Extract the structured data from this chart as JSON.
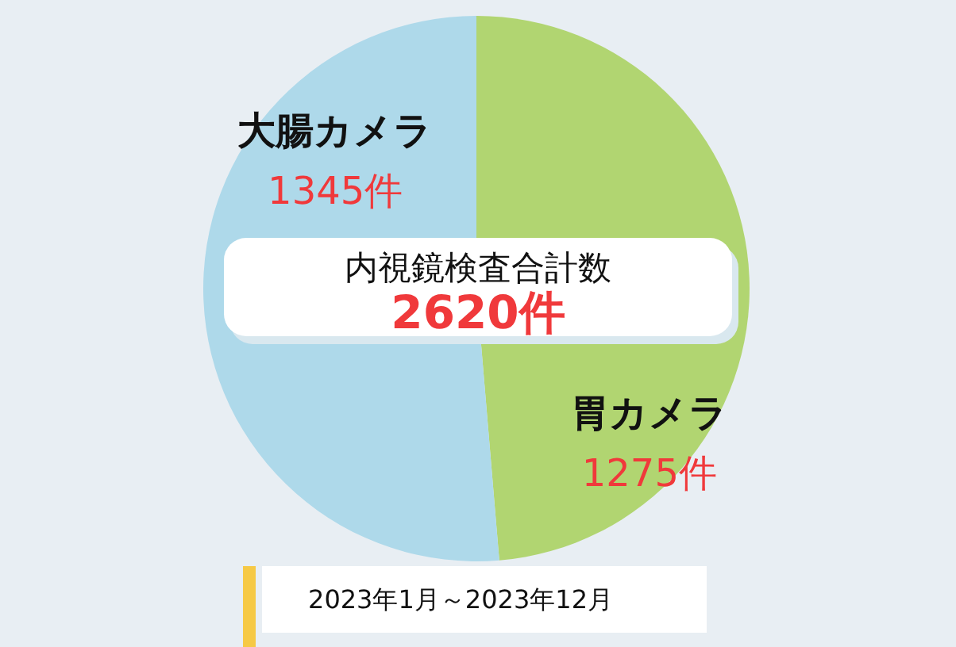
{
  "chart_data": {
    "type": "pie",
    "title": "内視鏡検査合計数",
    "categories": [
      "胃カメラ",
      "大腸カメラ"
    ],
    "values": [
      1275,
      1345
    ],
    "colors": [
      "#b1d571",
      "#aed9ea"
    ],
    "value_labels": [
      "1275件",
      "1345件"
    ],
    "annotations": [
      "2620件",
      "2023年1月～2023年12月"
    ]
  }
}
